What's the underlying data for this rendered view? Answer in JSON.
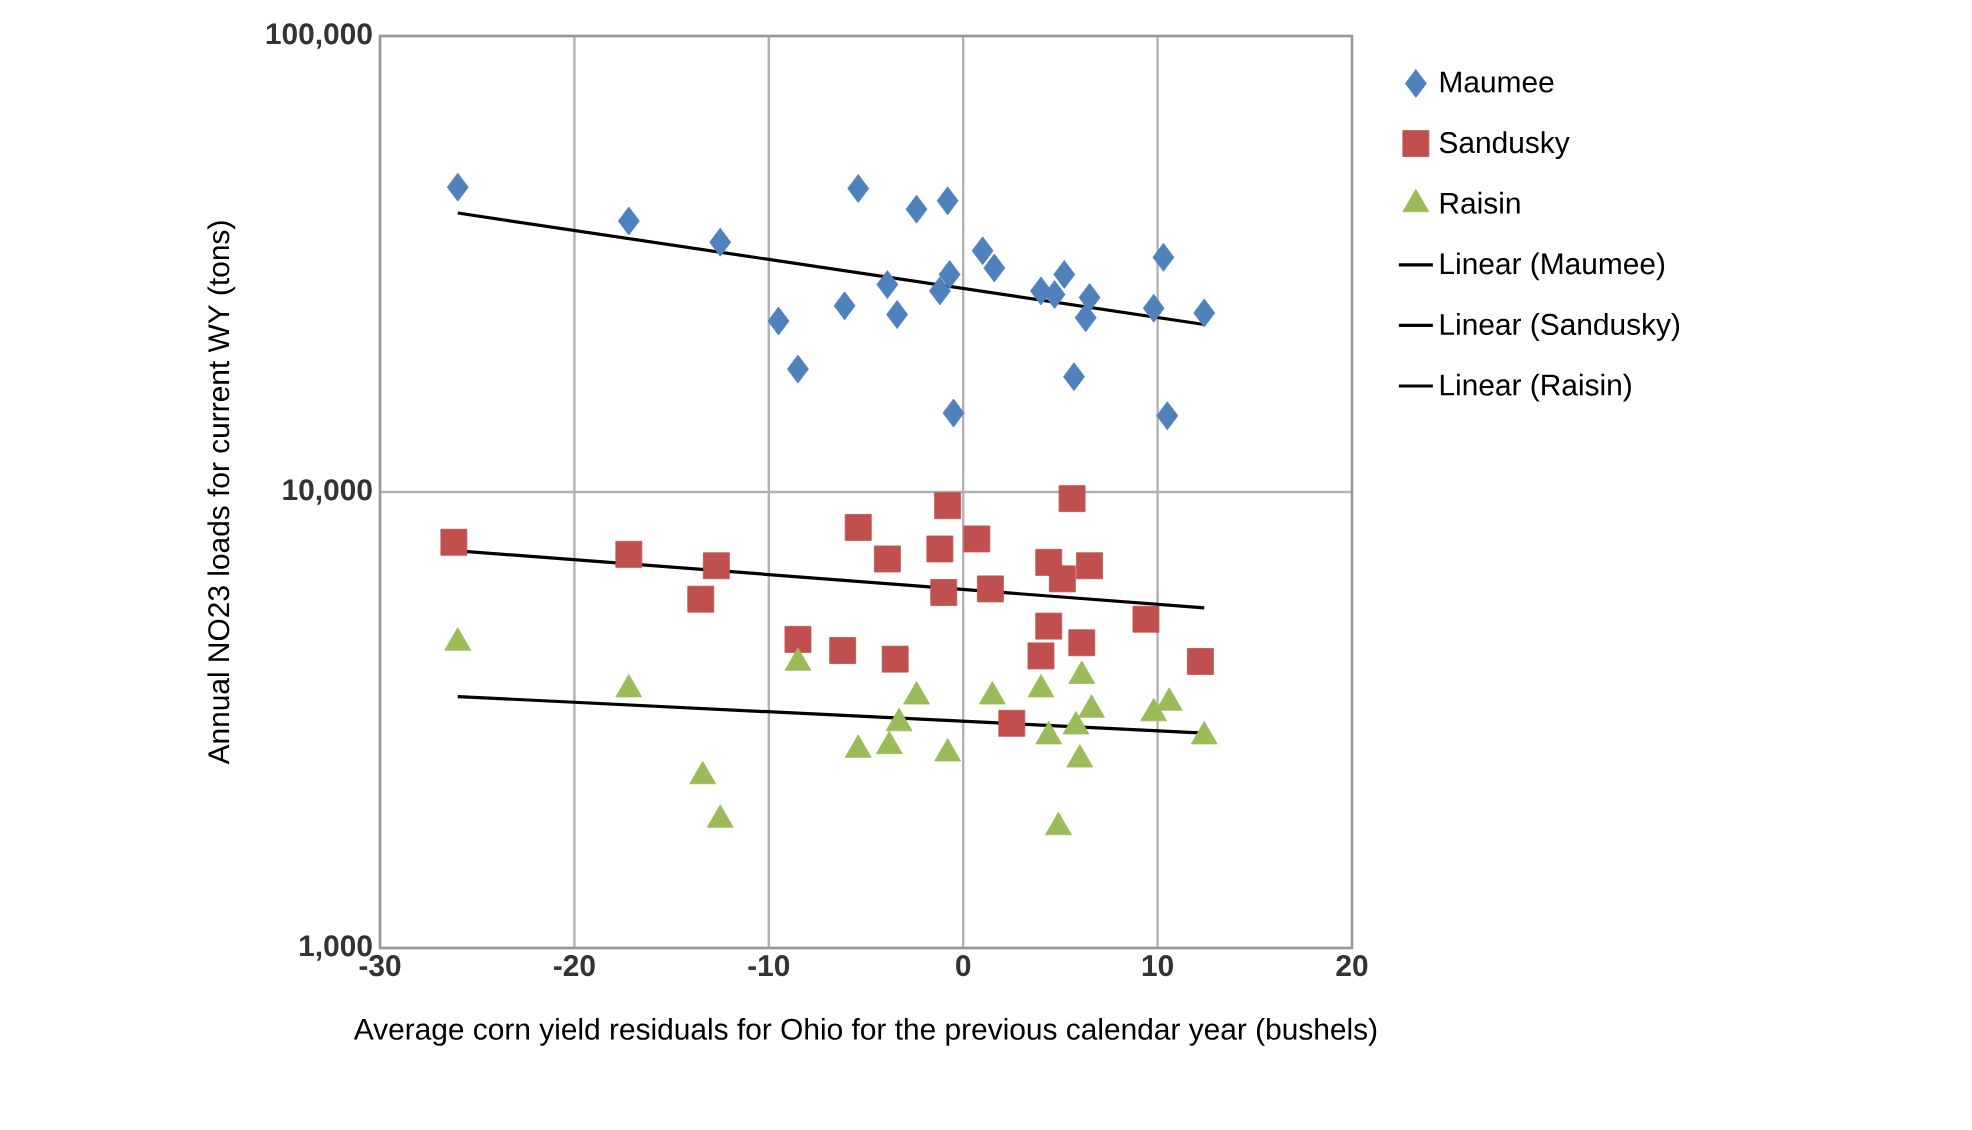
{
  "chart_data": {
    "type": "scatter",
    "xlabel": "Average corn yield residuals for Ohio for the previous calendar year (bushels)",
    "ylabel": "Annual NO23 loads for current WY (tons)",
    "xlim": [
      -30,
      20
    ],
    "xticks": [
      -30,
      -20,
      -10,
      0,
      10,
      20
    ],
    "ylim": [
      1000,
      100000
    ],
    "yticks": [
      {
        "value": 1000,
        "label": "1,000"
      },
      {
        "value": 10000,
        "label": "10,000"
      },
      {
        "value": 100000,
        "label": "100,000"
      }
    ],
    "log": "y",
    "grid": true,
    "legend": "right",
    "series": [
      {
        "name": "Maumee",
        "color": "#4f81bd",
        "marker": "diamond",
        "x": [
          -26.0,
          -17.2,
          -12.5,
          -9.5,
          -8.5,
          -6.1,
          -5.4,
          -3.9,
          -3.4,
          -2.4,
          -0.8,
          -1.2,
          -0.7,
          -0.5,
          1.0,
          1.6,
          4.0,
          5.2,
          4.7,
          6.3,
          6.5,
          5.7,
          10.3,
          9.8,
          10.5,
          12.4
        ],
        "values": [
          46600,
          39300,
          35300,
          23700,
          18600,
          25600,
          46300,
          28500,
          24500,
          41700,
          43500,
          27600,
          30000,
          14900,
          33800,
          31000,
          27600,
          30000,
          27100,
          24100,
          26700,
          17900,
          32700,
          25300,
          14700,
          24700
        ]
      },
      {
        "name": "Sandusky",
        "color": "#c0504d",
        "marker": "square",
        "x": [
          -26.2,
          -17.2,
          -12.7,
          -13.5,
          -8.5,
          -6.2,
          -5.4,
          -3.9,
          -3.5,
          -0.8,
          -1.2,
          -1.0,
          0.7,
          1.4,
          2.5,
          4.4,
          5.6,
          6.5,
          5.1,
          4.4,
          6.1,
          4.0,
          9.4,
          12.2
        ],
        "values": [
          7760,
          7300,
          6890,
          5820,
          4750,
          4490,
          8360,
          7130,
          4300,
          9330,
          7500,
          6020,
          7890,
          6130,
          3110,
          7010,
          9670,
          6890,
          6450,
          5080,
          4670,
          4370,
          5260,
          4250
        ]
      },
      {
        "name": "Raisin",
        "color": "#9bbb59",
        "marker": "triangle",
        "x": [
          -26.0,
          -17.2,
          -13.4,
          -12.5,
          -8.5,
          -5.4,
          -3.8,
          -3.3,
          -2.4,
          -0.8,
          1.5,
          4.0,
          4.9,
          4.4,
          6.1,
          6.6,
          5.8,
          6.0,
          9.8,
          10.6,
          12.4
        ],
        "values": [
          4670,
          3690,
          2380,
          1910,
          4220,
          2720,
          2770,
          3110,
          3560,
          2670,
          3560,
          3690,
          1840,
          2910,
          3950,
          3330,
          3060,
          2590,
          3270,
          3450,
          2910
        ]
      },
      {
        "name": "Linear (Maumee)",
        "type": "line",
        "color": "#000000",
        "marker": "none",
        "line_style": "solid",
        "x": [
          -26.0,
          12.4
        ],
        "values": [
          40900,
          23300
        ]
      },
      {
        "name": "Linear (Sandusky)",
        "type": "line",
        "color": "#000000",
        "marker": "none",
        "line_style": "solid",
        "x": [
          -26.0,
          12.4
        ],
        "values": [
          7430,
          5570
        ]
      },
      {
        "name": "Linear (Raisin)",
        "type": "line",
        "color": "#000000",
        "marker": "none",
        "line_style": "solid",
        "x": [
          -26.0,
          12.4
        ],
        "values": [
          3560,
          2960
        ]
      }
    ]
  }
}
